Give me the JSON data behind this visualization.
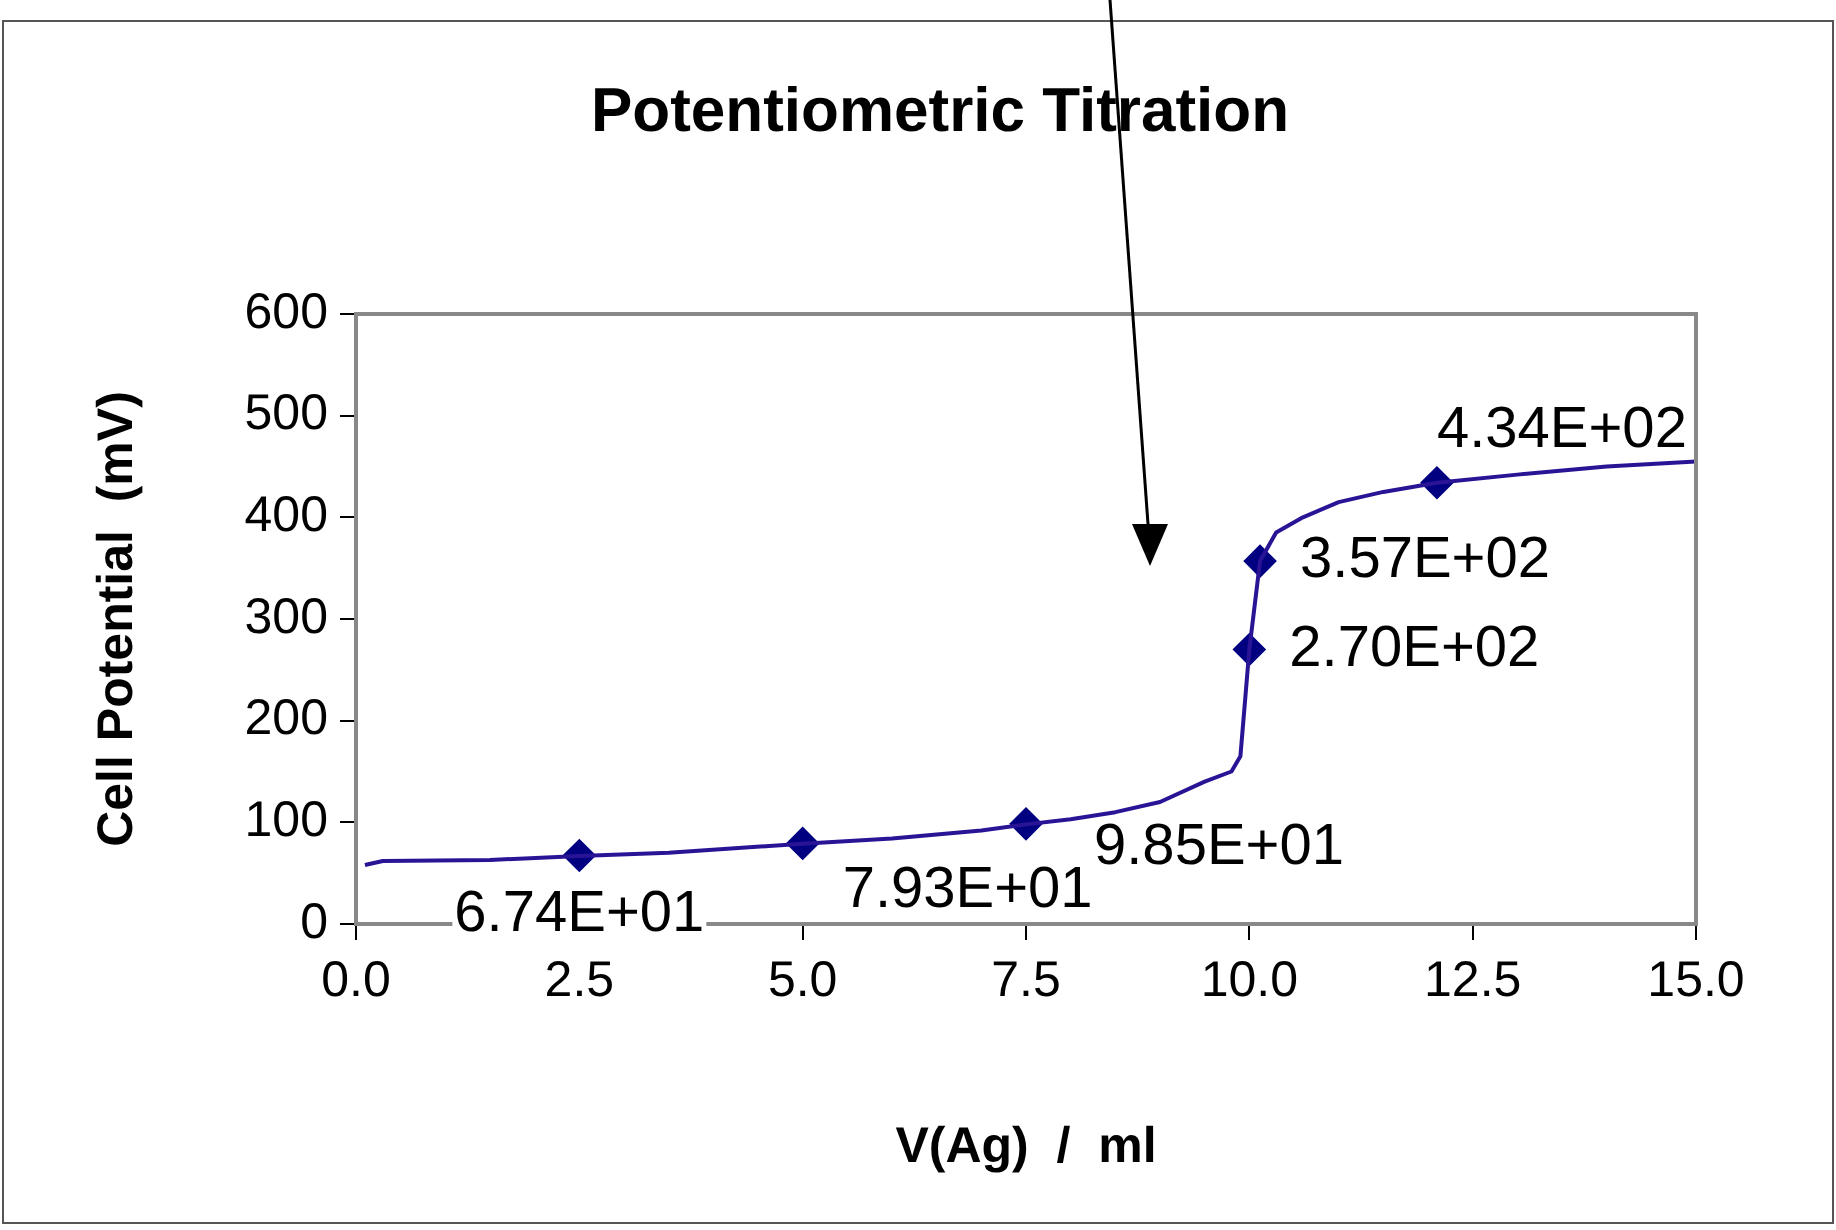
{
  "chart_data": {
    "type": "line",
    "title": "Potentiometric Titration",
    "xlabel": "V(Ag)  /  ml",
    "ylabel": "Cell Potential  (mV)",
    "xlim": [
      0,
      15
    ],
    "xticks": [
      {
        "value": 0,
        "label": "0.0"
      },
      {
        "value": 2.5,
        "label": "2.5"
      },
      {
        "value": 5,
        "label": "5.0"
      },
      {
        "value": 7.5,
        "label": "7.5"
      },
      {
        "value": 10,
        "label": "10.0"
      },
      {
        "value": 12.5,
        "label": "12.5"
      },
      {
        "value": 15,
        "label": "15.0"
      }
    ],
    "ylim": [
      0,
      600
    ],
    "yticks": [
      0,
      100,
      200,
      300,
      400,
      500,
      600
    ],
    "grid": false,
    "legend": false,
    "series": [
      {
        "marker": "none",
        "color": "#2a1496",
        "x": [
          0.1,
          0.3,
          1.5,
          2.5,
          3.5,
          5,
          6,
          7,
          7.5,
          8,
          8.5,
          9,
          9.5,
          9.8,
          9.9,
          10.0,
          10.12,
          10.3,
          10.6,
          11,
          11.5,
          12.1,
          13,
          14,
          15
        ],
        "values": [
          58,
          62,
          63,
          67,
          70,
          79,
          84,
          92,
          98,
          103,
          110,
          120,
          140,
          150,
          165,
          270,
          357,
          385,
          400,
          415,
          425,
          434,
          442,
          450,
          455
        ]
      },
      {
        "type": "scatter",
        "marker": "diamond",
        "color": "#000080",
        "x": [
          2.5,
          5,
          7.5,
          10.0,
          10.12,
          12.1
        ],
        "values": [
          67.4,
          79.3,
          98.5,
          270,
          357,
          434
        ],
        "value_labels": [
          "6.74E+01",
          "7.93E+01",
          "9.85E+01",
          "2.70E+02",
          "3.57E+02",
          "4.34E+02"
        ]
      }
    ]
  }
}
